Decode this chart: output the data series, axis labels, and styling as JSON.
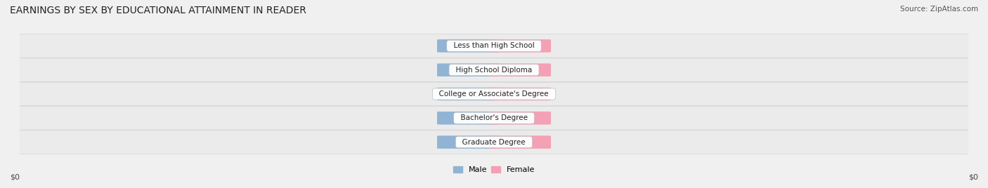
{
  "title": "EARNINGS BY SEX BY EDUCATIONAL ATTAINMENT IN READER",
  "source": "Source: ZipAtlas.com",
  "categories": [
    "Less than High School",
    "High School Diploma",
    "College or Associate's Degree",
    "Bachelor's Degree",
    "Graduate Degree"
  ],
  "male_values": [
    0,
    0,
    0,
    0,
    0
  ],
  "female_values": [
    0,
    0,
    0,
    0,
    0
  ],
  "male_color": "#92b4d4",
  "female_color": "#f4a0b5",
  "background_color": "#f0f0f0",
  "row_even_color": "#ebebeb",
  "row_odd_color": "#e3e3e3",
  "xlabel_left": "$0",
  "xlabel_right": "$0",
  "legend_male": "Male",
  "legend_female": "Female",
  "title_fontsize": 10,
  "source_fontsize": 7.5,
  "bar_height": 0.52,
  "bar_stub": 0.11,
  "figsize": [
    14.06,
    2.68
  ],
  "dpi": 100
}
